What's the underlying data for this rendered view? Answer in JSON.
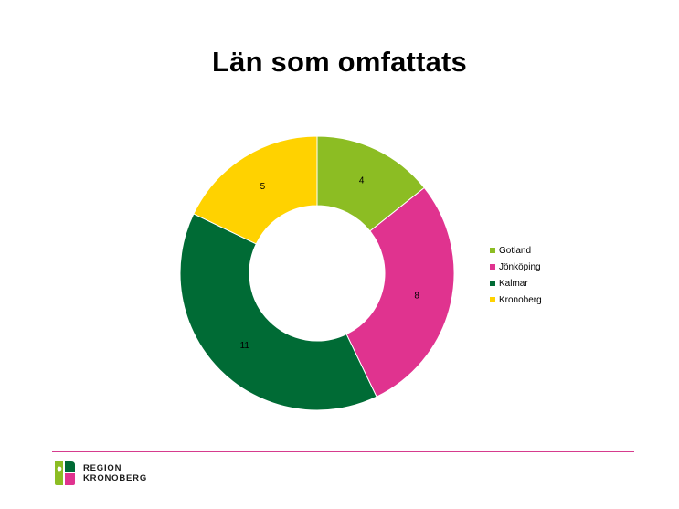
{
  "slide": {
    "title": "Län som omfattats"
  },
  "chart_data": {
    "type": "pie",
    "variant": "donut",
    "title": "Län som omfattats",
    "categories": [
      "Gotland",
      "Jönköping",
      "Kalmar",
      "Kronoberg"
    ],
    "values": [
      4,
      8,
      11,
      5
    ],
    "colors": [
      "#8cbd23",
      "#e0338f",
      "#006b35",
      "#ffd200"
    ],
    "data_labels": [
      "4",
      "8",
      "11",
      "5"
    ],
    "legend_position": "right"
  },
  "footer": {
    "rule_color": "#d63b8e",
    "logo": {
      "line1": "REGION",
      "line2": "KRONOBERG"
    }
  }
}
